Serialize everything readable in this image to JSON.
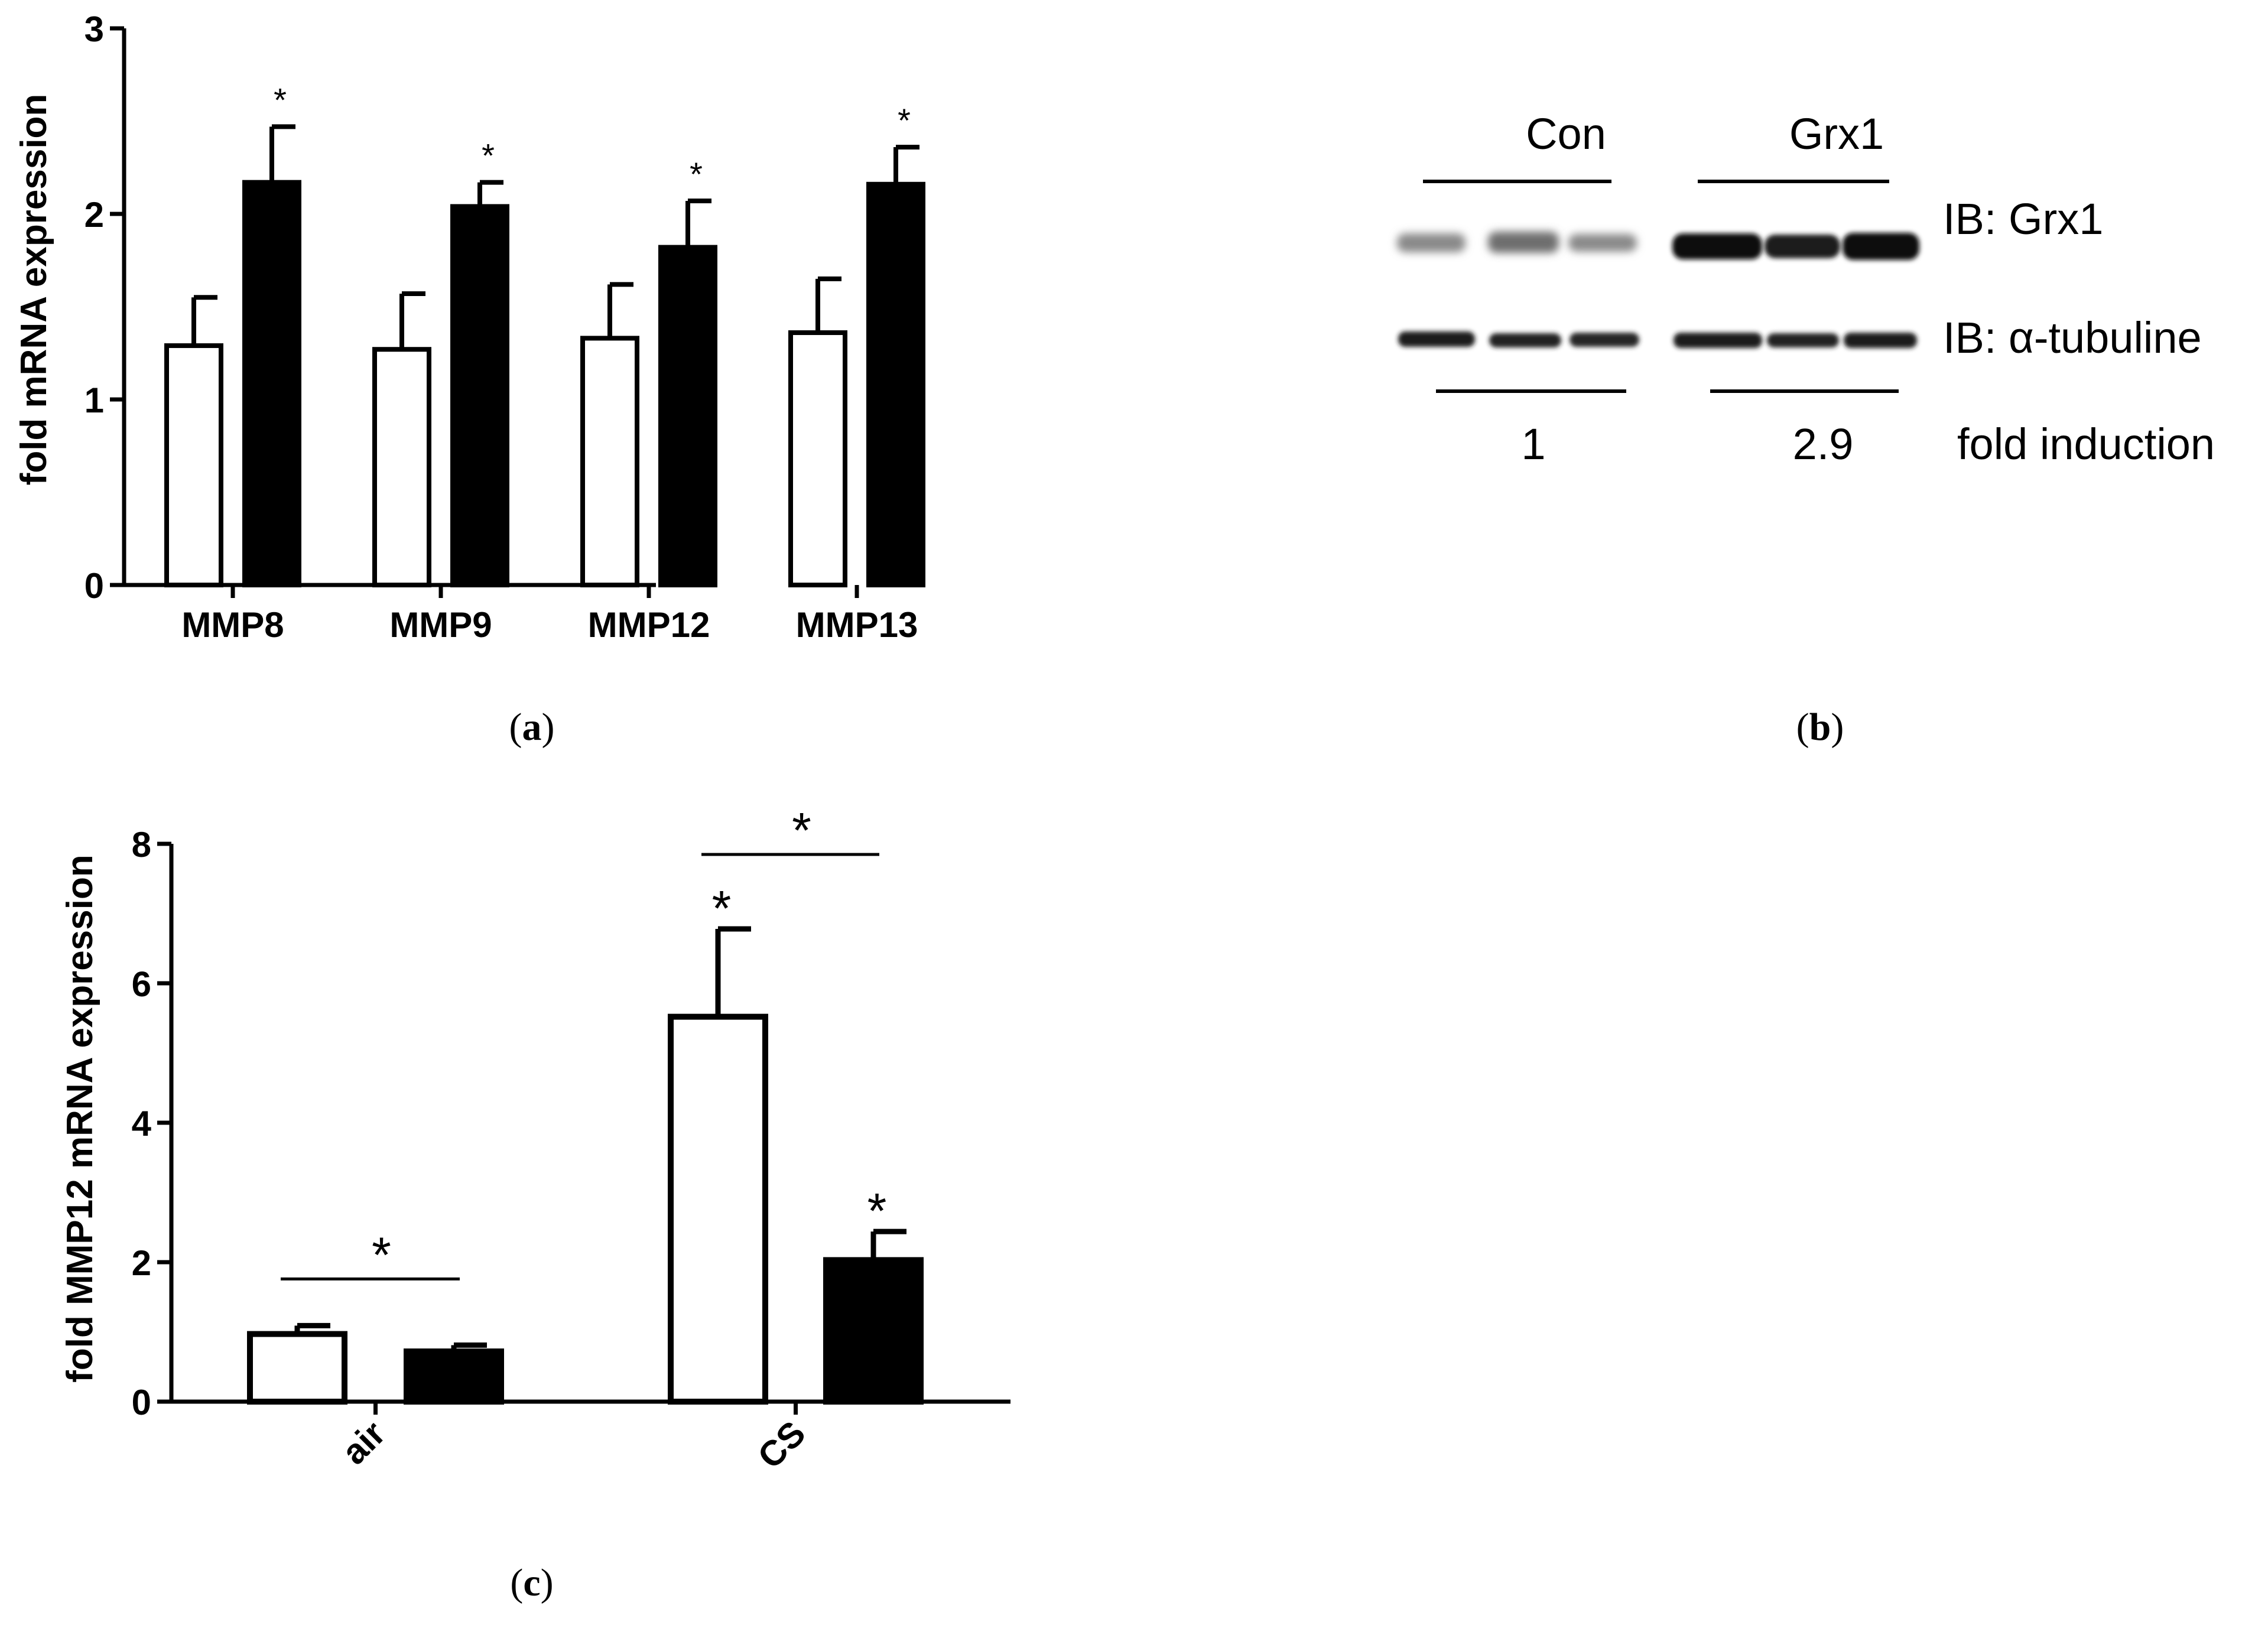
{
  "panel_labels": {
    "a": "a",
    "b": "b",
    "c": "c"
  },
  "colors": {
    "control_fill": "#ffffff",
    "treated_fill": "#000000",
    "stroke": "#000000"
  },
  "chart_data": [
    {
      "id": "a",
      "type": "bar",
      "ylabel": "fold mRNA expression",
      "ylim": [
        0,
        3
      ],
      "yticks": [
        0,
        1,
        2,
        3
      ],
      "categories": [
        "MMP8",
        "MMP9",
        "MMP12",
        "MMP13"
      ],
      "series": [
        {
          "fill": "white",
          "values": [
            1.29,
            1.27,
            1.33,
            1.36
          ],
          "errors": [
            0.26,
            0.3,
            0.29,
            0.29
          ],
          "sig": [
            "",
            "",
            "",
            ""
          ]
        },
        {
          "fill": "black",
          "values": [
            2.17,
            2.04,
            1.82,
            2.16
          ],
          "errors": [
            0.3,
            0.13,
            0.25,
            0.2
          ],
          "sig": [
            "*",
            "*",
            "*",
            "*"
          ]
        }
      ],
      "grid": false
    },
    {
      "id": "c",
      "type": "bar",
      "ylabel": "fold MMP12 mRNA expression",
      "ylim": [
        0,
        8
      ],
      "yticks": [
        0,
        2,
        4,
        6,
        8
      ],
      "categories": [
        "air",
        "CS"
      ],
      "series": [
        {
          "fill": "white",
          "values": [
            0.97,
            5.52
          ],
          "errors": [
            0.12,
            1.26
          ],
          "sig": [
            "",
            "*"
          ]
        },
        {
          "fill": "black",
          "values": [
            0.72,
            2.03
          ],
          "errors": [
            0.09,
            0.41
          ],
          "sig": [
            "",
            "*"
          ]
        }
      ],
      "brackets": [
        {
          "category": "air",
          "label": "*"
        },
        {
          "category": "CS",
          "label": "*"
        }
      ],
      "grid": false
    }
  ],
  "blot": {
    "groups": [
      "Con",
      "Grx1"
    ],
    "rows": [
      "IB: Grx1",
      "IB: α-tubuline"
    ],
    "fold_values": [
      "1",
      "2.9"
    ],
    "fold_label": "fold induction"
  }
}
